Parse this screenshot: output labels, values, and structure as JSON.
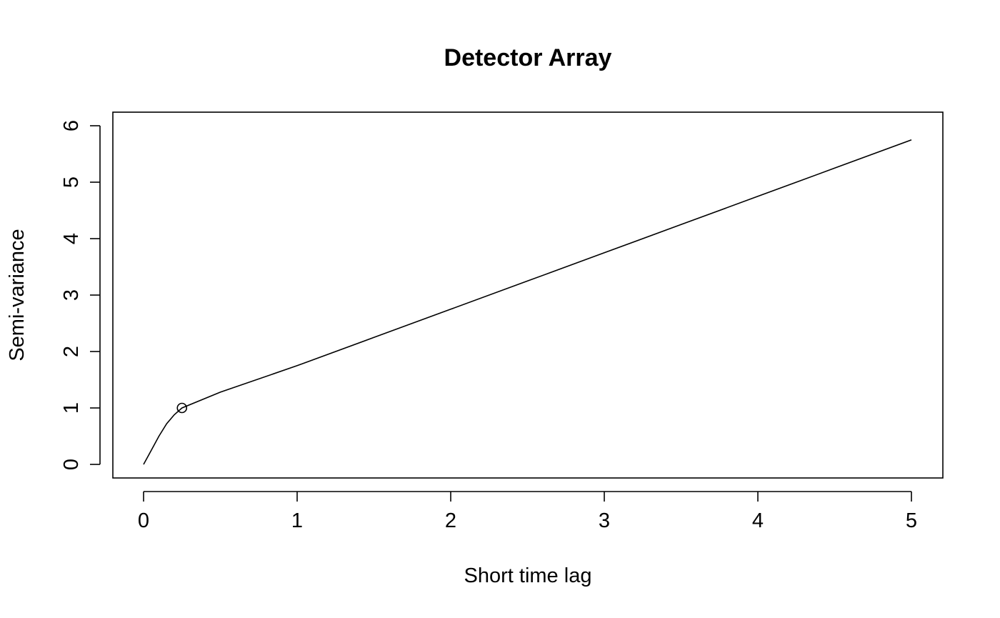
{
  "chart_data": {
    "type": "line",
    "title": "Detector Array",
    "xlabel": "Short time lag",
    "ylabel": "Semi-variance",
    "xlim": [
      0,
      5
    ],
    "ylim": [
      0,
      6
    ],
    "x_ticks": [
      0,
      1,
      2,
      3,
      4,
      5
    ],
    "y_ticks": [
      0,
      1,
      2,
      3,
      4,
      5,
      6
    ],
    "grid": false,
    "legend": "none",
    "series": [
      {
        "x": [
          0,
          0.05,
          0.1,
          0.15,
          0.2,
          0.25,
          0.5,
          1,
          1.5,
          2,
          2.5,
          3,
          3.5,
          4,
          4.5,
          5
        ],
        "values": [
          0,
          0.25,
          0.5,
          0.72,
          0.88,
          1.0,
          1.28,
          1.75,
          2.25,
          2.75,
          3.25,
          3.75,
          4.25,
          4.75,
          5.25,
          5.75
        ]
      }
    ],
    "markers": [
      {
        "x": 0.25,
        "y": 1.0,
        "shape": "open-circle"
      }
    ]
  }
}
